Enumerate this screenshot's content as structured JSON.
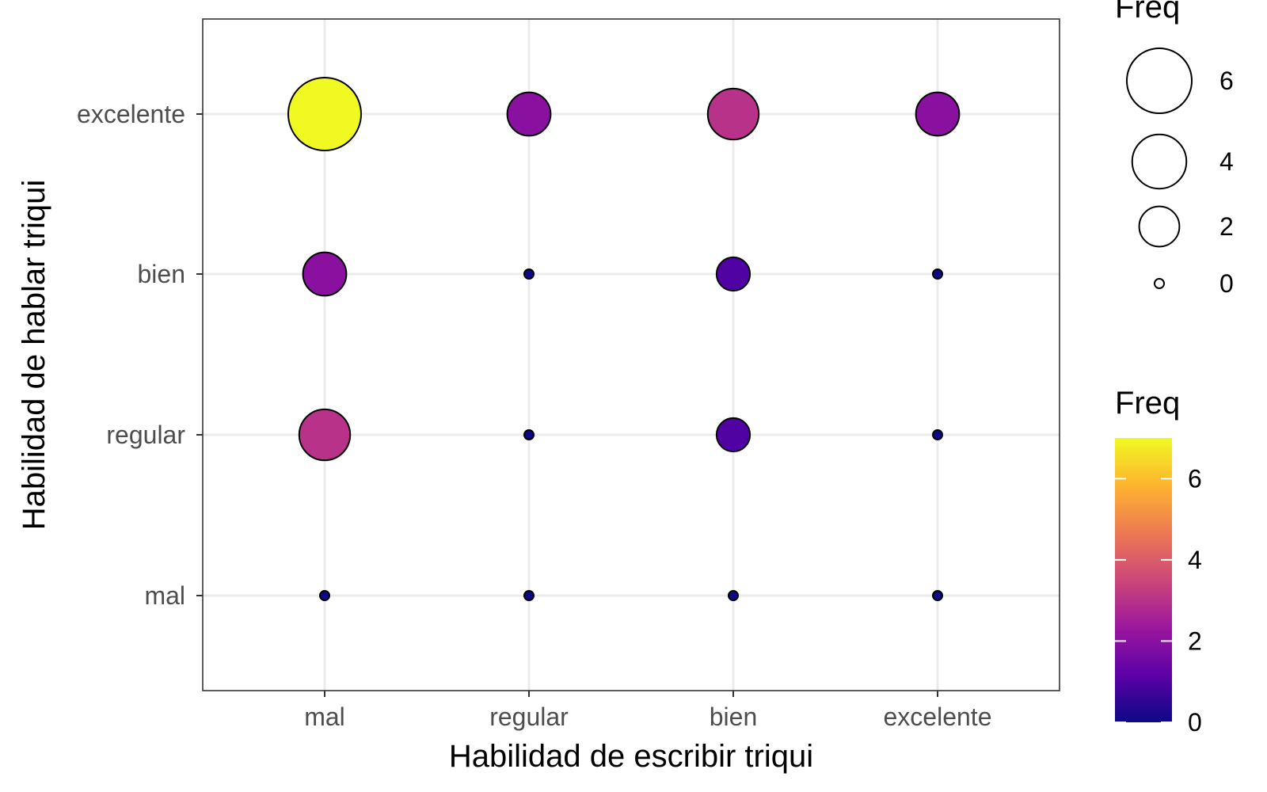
{
  "chart_data": {
    "type": "scatter",
    "xlabel": "Habilidad de escribir triqui",
    "ylabel": "Habilidad de hablar triqui",
    "x_categories": [
      "mal",
      "regular",
      "bien",
      "excelente"
    ],
    "y_categories": [
      "mal",
      "regular",
      "bien",
      "excelente"
    ],
    "points": [
      {
        "x": "mal",
        "y": "mal",
        "freq": 0
      },
      {
        "x": "regular",
        "y": "mal",
        "freq": 0
      },
      {
        "x": "bien",
        "y": "mal",
        "freq": 0
      },
      {
        "x": "excelente",
        "y": "mal",
        "freq": 0
      },
      {
        "x": "mal",
        "y": "regular",
        "freq": 3
      },
      {
        "x": "regular",
        "y": "regular",
        "freq": 0
      },
      {
        "x": "bien",
        "y": "regular",
        "freq": 1
      },
      {
        "x": "excelente",
        "y": "regular",
        "freq": 0
      },
      {
        "x": "mal",
        "y": "bien",
        "freq": 2
      },
      {
        "x": "regular",
        "y": "bien",
        "freq": 0
      },
      {
        "x": "bien",
        "y": "bien",
        "freq": 1
      },
      {
        "x": "excelente",
        "y": "bien",
        "freq": 0
      },
      {
        "x": "mal",
        "y": "excelente",
        "freq": 7
      },
      {
        "x": "regular",
        "y": "excelente",
        "freq": 2
      },
      {
        "x": "bien",
        "y": "excelente",
        "freq": 3
      },
      {
        "x": "excelente",
        "y": "excelente",
        "freq": 2
      }
    ],
    "size_legend": {
      "title": "Freq",
      "breaks": [
        6,
        4,
        2,
        0
      ]
    },
    "color_legend": {
      "title": "Freq",
      "breaks": [
        0,
        2,
        4,
        6
      ],
      "range": [
        0,
        7
      ],
      "colors": [
        "#0d0887",
        "#5c01a6",
        "#9c179e",
        "#cc4778",
        "#ed7953",
        "#fdb42f",
        "#f0f921"
      ]
    },
    "grid": true,
    "legend_position": "right"
  }
}
